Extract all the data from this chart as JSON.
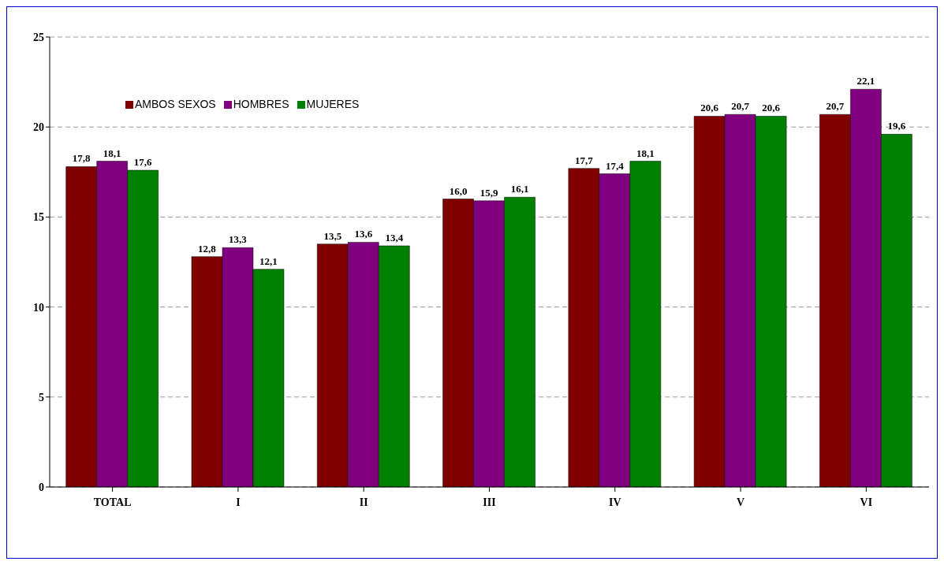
{
  "chart_data": {
    "type": "bar",
    "categories": [
      "TOTAL",
      "I",
      "II",
      "III",
      "IV",
      "V",
      "VI"
    ],
    "series": [
      {
        "name": "AMBOS SEXOS",
        "color": "#800000",
        "values": [
          17.8,
          12.8,
          13.5,
          16.0,
          17.7,
          20.6,
          20.7
        ],
        "value_labels": [
          "17,8",
          "12,8",
          "13,5",
          "16,0",
          "17,7",
          "20,6",
          "20,7"
        ]
      },
      {
        "name": "HOMBRES",
        "color": "#800080",
        "values": [
          18.1,
          13.3,
          13.6,
          15.9,
          17.4,
          20.7,
          22.1
        ],
        "value_labels": [
          "18,1",
          "13,3",
          "13,6",
          "15,9",
          "17,4",
          "20,7",
          "22,1"
        ]
      },
      {
        "name": "MUJERES",
        "color": "#008000",
        "values": [
          17.6,
          12.1,
          13.4,
          16.1,
          18.1,
          20.6,
          19.6
        ],
        "value_labels": [
          "17,6",
          "12,1",
          "13,4",
          "16,1",
          "18,1",
          "20,6",
          "19,6"
        ]
      }
    ],
    "ylim": [
      0,
      25
    ],
    "yticks": [
      0,
      5,
      10,
      15,
      20,
      25
    ],
    "grid": "y",
    "legend": "top left"
  }
}
